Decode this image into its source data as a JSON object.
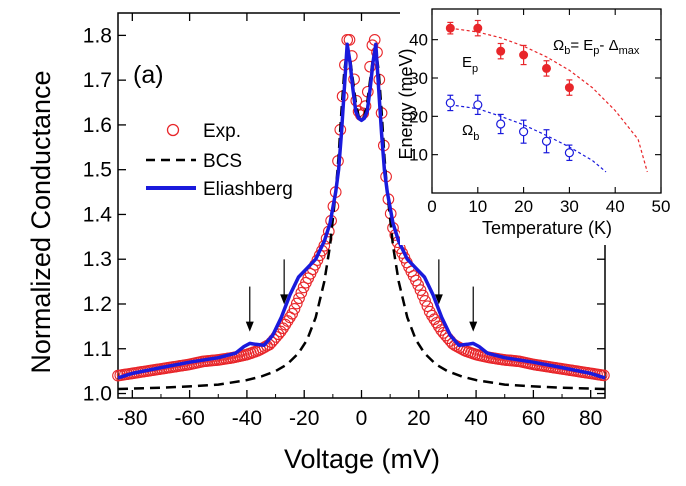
{
  "chart_data": [
    {
      "type": "line",
      "panel_label": "(a)",
      "xlabel": "Voltage (mV)",
      "ylabel": "Normalized Conductance",
      "xlim": [
        -85,
        85
      ],
      "ylim": [
        0.99,
        1.85
      ],
      "x_ticks": [
        -80,
        -60,
        -40,
        -20,
        0,
        20,
        40,
        60,
        80
      ],
      "y_ticks": [
        1.0,
        1.1,
        1.2,
        1.3,
        1.4,
        1.5,
        1.6,
        1.7,
        1.8
      ],
      "y_tick_labels": [
        "1.0",
        "1.1",
        "1.2",
        "1.3",
        "1.4",
        "1.5",
        "1.6",
        "1.7",
        "1.8"
      ],
      "legend": [
        {
          "label": "Exp.",
          "style": "open-circle",
          "color": "#e8262a"
        },
        {
          "label": "BCS",
          "style": "dashed",
          "color": "#000000"
        },
        {
          "label": "Eliashberg",
          "style": "solid",
          "color": "#1a1adc"
        }
      ],
      "arrows_x": [
        -39,
        -27,
        27,
        39
      ],
      "series": [
        {
          "name": "Exp.",
          "x": [
            -85,
            -80,
            -75,
            -70,
            -65,
            -60,
            -55,
            -50,
            -45,
            -40,
            -36,
            -32,
            -28,
            -24,
            -20,
            -16,
            -13,
            -11,
            -9,
            -7.5,
            -6,
            -5,
            -4,
            -3,
            -2,
            -1,
            0,
            1,
            2,
            3,
            4,
            5,
            6,
            7.5,
            9,
            11,
            13,
            16,
            20,
            24,
            28,
            32,
            36,
            40,
            45,
            50,
            55,
            60,
            65,
            70,
            75,
            80,
            85
          ],
          "values": [
            1.04,
            1.045,
            1.05,
            1.055,
            1.06,
            1.065,
            1.072,
            1.075,
            1.08,
            1.087,
            1.096,
            1.11,
            1.14,
            1.18,
            1.24,
            1.29,
            1.33,
            1.37,
            1.45,
            1.58,
            1.72,
            1.79,
            1.79,
            1.73,
            1.66,
            1.63,
            1.62,
            1.63,
            1.66,
            1.73,
            1.79,
            1.79,
            1.72,
            1.58,
            1.45,
            1.37,
            1.33,
            1.29,
            1.24,
            1.18,
            1.14,
            1.11,
            1.096,
            1.087,
            1.08,
            1.075,
            1.072,
            1.065,
            1.06,
            1.055,
            1.05,
            1.045,
            1.04
          ]
        },
        {
          "name": "BCS",
          "x": [
            -85,
            -80,
            -70,
            -60,
            -50,
            -40,
            -35,
            -30,
            -26,
            -22,
            -19,
            -16,
            -13,
            -11,
            -9,
            -8,
            -7,
            -6,
            -5,
            -4,
            -3,
            -2,
            -1,
            0,
            1,
            2,
            3,
            4,
            5,
            6,
            7,
            8,
            9,
            11,
            13,
            16,
            19,
            22,
            26,
            30,
            35,
            40,
            50,
            60,
            70,
            80,
            85
          ],
          "values": [
            1.01,
            1.011,
            1.013,
            1.016,
            1.02,
            1.03,
            1.038,
            1.05,
            1.065,
            1.09,
            1.12,
            1.17,
            1.25,
            1.33,
            1.45,
            1.53,
            1.63,
            1.72,
            1.77,
            1.75,
            1.7,
            1.65,
            1.62,
            1.61,
            1.62,
            1.65,
            1.7,
            1.75,
            1.77,
            1.72,
            1.63,
            1.53,
            1.45,
            1.33,
            1.25,
            1.17,
            1.12,
            1.09,
            1.065,
            1.05,
            1.038,
            1.03,
            1.02,
            1.016,
            1.013,
            1.011,
            1.01
          ]
        },
        {
          "name": "Eliashberg",
          "x": [
            -85,
            -80,
            -70,
            -60,
            -50,
            -44,
            -41,
            -39,
            -37,
            -34,
            -31,
            -28,
            -25,
            -22,
            -19,
            -16,
            -13,
            -11,
            -9,
            -8,
            -7,
            -6,
            -5,
            -4,
            -3,
            -2,
            -1,
            0,
            1,
            2,
            3,
            4,
            5,
            6,
            7,
            8,
            9,
            11,
            13,
            16,
            19,
            22,
            25,
            28,
            31,
            34,
            37,
            39,
            41,
            44,
            50,
            60,
            70,
            80,
            85
          ],
          "values": [
            1.035,
            1.045,
            1.058,
            1.07,
            1.08,
            1.09,
            1.105,
            1.112,
            1.11,
            1.108,
            1.13,
            1.17,
            1.22,
            1.26,
            1.28,
            1.3,
            1.34,
            1.38,
            1.45,
            1.5,
            1.58,
            1.68,
            1.78,
            1.74,
            1.68,
            1.63,
            1.615,
            1.61,
            1.615,
            1.63,
            1.68,
            1.74,
            1.78,
            1.68,
            1.58,
            1.5,
            1.45,
            1.38,
            1.34,
            1.3,
            1.28,
            1.26,
            1.22,
            1.17,
            1.13,
            1.108,
            1.11,
            1.112,
            1.105,
            1.09,
            1.08,
            1.07,
            1.058,
            1.045,
            1.035
          ]
        }
      ]
    },
    {
      "type": "scatter",
      "xlabel": "Temperature (K)",
      "ylabel": "Energy (meV)",
      "xlim": [
        0,
        50
      ],
      "ylim": [
        0,
        48
      ],
      "x_ticks": [
        0,
        10,
        20,
        30,
        40,
        50
      ],
      "y_ticks": [
        10,
        20,
        30,
        40
      ],
      "annotation": {
        "main": "Ω",
        "sub1": "b",
        "mid": "= E",
        "sub2": "p",
        "tail": "- Δ",
        "sub3": "max"
      },
      "series": [
        {
          "name": "Ep",
          "label_main": "E",
          "label_sub": "p",
          "marker": "filled-circle",
          "color": "#e8262a",
          "x": [
            4,
            10,
            15,
            20,
            25,
            30
          ],
          "values": [
            43,
            43,
            37,
            36,
            32.5,
            27.5
          ],
          "errors": [
            1.5,
            2,
            2,
            2.5,
            2,
            2
          ],
          "fit": {
            "x": [
              4,
              10,
              15,
              20,
              25,
              30,
              35,
              40,
              45,
              47
            ],
            "values": [
              43,
              42,
              40.5,
              38.3,
              35.5,
              32,
              27.5,
              21.5,
              14,
              5.5
            ]
          }
        },
        {
          "name": "Ωb",
          "label_main": "Ω",
          "label_sub": "b",
          "marker": "open-circle",
          "color": "#1a1adc",
          "x": [
            4,
            10,
            15,
            20,
            25,
            30
          ],
          "values": [
            23.5,
            23,
            18,
            16,
            13.5,
            10.5
          ],
          "errors": [
            2,
            2.5,
            2.5,
            3,
            3,
            2
          ],
          "fit": {
            "x": [
              4,
              10,
              15,
              20,
              25,
              30,
              35,
              38
            ],
            "values": [
              23,
              22,
              20,
              17.8,
              15,
              12,
              8.5,
              5.5
            ]
          }
        }
      ]
    }
  ]
}
